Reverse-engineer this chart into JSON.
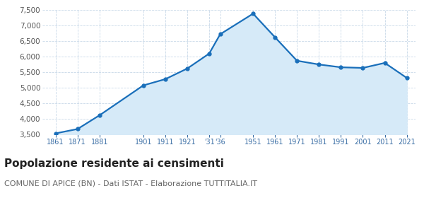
{
  "years": [
    1861,
    1871,
    1881,
    1901,
    1911,
    1921,
    1931,
    1936,
    1951,
    1961,
    1971,
    1981,
    1991,
    2001,
    2011,
    2021
  ],
  "population": [
    3540,
    3680,
    4120,
    5080,
    5280,
    5620,
    6100,
    6720,
    7380,
    6620,
    5870,
    5750,
    5660,
    5640,
    5800,
    5320
  ],
  "x_tick_positions": [
    1861,
    1871,
    1881,
    1901,
    1911,
    1921,
    1931,
    1936,
    1951,
    1961,
    1971,
    1981,
    1991,
    2001,
    2011,
    2021
  ],
  "x_tick_labels": [
    "1861",
    "1871",
    "1881",
    "1901",
    "1911",
    "1921",
    "'31",
    "'36",
    "1951",
    "1961",
    "1971",
    "1981",
    "1991",
    "2001",
    "2011",
    "2021"
  ],
  "ylim": [
    3500,
    7500
  ],
  "yticks": [
    3500,
    4000,
    4500,
    5000,
    5500,
    6000,
    6500,
    7000,
    7500
  ],
  "line_color": "#1a6fba",
  "fill_color": "#d6eaf8",
  "marker_color": "#1a6fba",
  "grid_color": "#c8d8e8",
  "title": "Popolazione residente ai censimenti",
  "subtitle": "COMUNE DI APICE (BN) - Dati ISTAT - Elaborazione TUTTITALIA.IT",
  "title_fontsize": 11,
  "subtitle_fontsize": 8,
  "bg_color": "#ffffff",
  "xlim_left": 1855,
  "xlim_right": 2025
}
